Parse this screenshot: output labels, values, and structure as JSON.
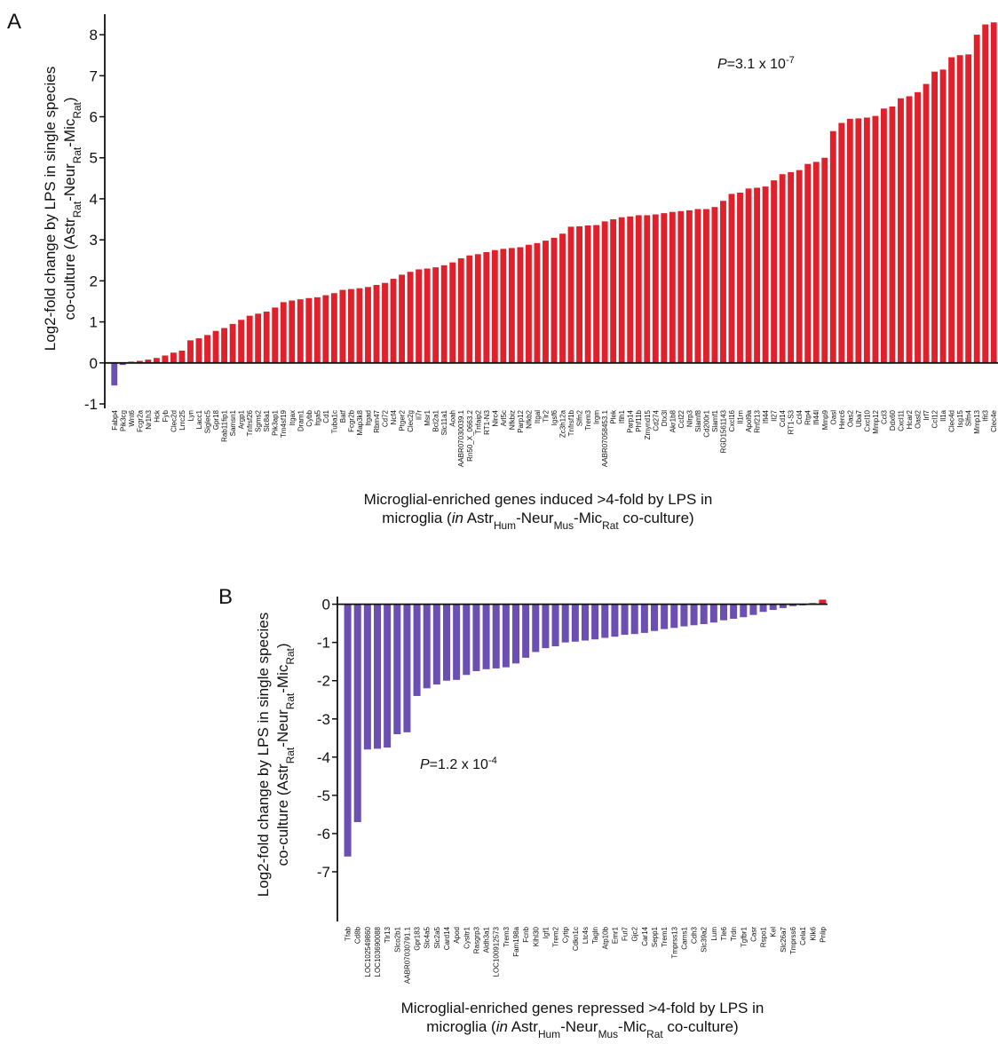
{
  "chart_data": [
    {
      "type": "bar",
      "panel": "A",
      "color": "#e0202a",
      "negative_color": "#6b4fb3",
      "ylabel": [
        [
          {
            "text": "Log2-fold change by LPS in single species",
            "style": "normal"
          }
        ],
        [
          {
            "text": "co-culture (Astr",
            "style": "normal"
          },
          {
            "text": "Rat",
            "style": "sub"
          },
          {
            "text": "-Neur",
            "style": "normal"
          },
          {
            "text": "Rat",
            "style": "sub"
          },
          {
            "text": "-Mic",
            "style": "normal"
          },
          {
            "text": "Rat",
            "style": "sub"
          },
          {
            "text": ")",
            "style": "normal"
          }
        ]
      ],
      "xlabel": [
        [
          {
            "text": "Microglial-enriched genes induced >4-fold by LPS in",
            "style": "normal"
          }
        ],
        [
          {
            "text": "microglia (",
            "style": "normal"
          },
          {
            "text": "in",
            "style": "italic"
          },
          {
            "text": " Astr",
            "style": "normal"
          },
          {
            "text": "Hum",
            "style": "sub"
          },
          {
            "text": "-Neur",
            "style": "normal"
          },
          {
            "text": "Mus",
            "style": "sub"
          },
          {
            "text": "-Mic",
            "style": "normal"
          },
          {
            "text": "Rat",
            "style": "sub"
          },
          {
            "text": " co-culture)",
            "style": "normal"
          }
        ]
      ],
      "annotation": [
        {
          "text": "P",
          "style": "italic"
        },
        {
          "text": "=3.1 x 10",
          "style": "normal"
        },
        {
          "text": "-7",
          "style": "sup"
        }
      ],
      "categories": [
        "Fabp4",
        "Pik3cg",
        "Wnt6",
        "Fcgr2a",
        "Nr1h3",
        "Hck",
        "Fyb",
        "Clec2d",
        "Lrrc25",
        "Lyn",
        "Lacc1",
        "Siglec5",
        "Gpr18",
        "Rab11fip1",
        "Samsn1",
        "Argp1",
        "Tnfrsf26",
        "Sgms2",
        "Slc8a1",
        "Pik3ap1",
        "Tm4sf19",
        "Itgax",
        "Dram1",
        "Cybb",
        "Itga5",
        "Cd1",
        "Tuba1c",
        "Batf",
        "Fcgr2b",
        "Map3k8",
        "Itgad",
        "Rbm47",
        "Cd72",
        "Ncf4",
        "Ptger2",
        "Clec2g",
        "Il7r",
        "Msr1",
        "Bcl2a1",
        "Slc11a1",
        "Aoah",
        "AABR07030039.1",
        "Rn50_X_0663.2",
        "Tnfaip2",
        "RT1-N3",
        "Nlrc4",
        "Arl5c",
        "Nfkbiz",
        "Parp12",
        "Nfkb2",
        "Itgal",
        "Tlr2",
        "Igsf6",
        "Zc3h12a",
        "Tnfrsf1b",
        "Slfn2",
        "Trem3",
        "Irgm",
        "AABR07058453.1",
        "Plek",
        "Ifih1",
        "Parp14",
        "Phf11b",
        "Zmynd15",
        "Cd274",
        "Dtx3l",
        "Akr1b8",
        "Ccl22",
        "Nlrp3",
        "Slamf8",
        "Cd200r1",
        "Slamf1",
        "RGD1561143",
        "Cxcl16",
        "Il1rn",
        "Apol9a",
        "Rnf213",
        "Ifi44",
        "Il27",
        "Cd14",
        "RT1-S3",
        "Ccl4",
        "Rtp4",
        "Ifi44l",
        "Mmp9",
        "Oasl",
        "Herc6",
        "Oas2",
        "Uba7",
        "Cxcl10",
        "Mmp12",
        "Ccl3",
        "Ddx60",
        "Cxcl11",
        "Hcar2",
        "Oasl2",
        "Irf7",
        "Ccl12",
        "Il1a",
        "Clec4d",
        "Isg15",
        "Slfn4",
        "Mmp13",
        "Ifit3",
        "Clec4e"
      ],
      "values": [
        -0.55,
        -0.05,
        0.03,
        0.05,
        0.08,
        0.12,
        0.18,
        0.25,
        0.3,
        0.55,
        0.6,
        0.68,
        0.78,
        0.85,
        0.95,
        1.05,
        1.15,
        1.2,
        1.25,
        1.35,
        1.48,
        1.52,
        1.55,
        1.58,
        1.6,
        1.65,
        1.7,
        1.78,
        1.8,
        1.82,
        1.85,
        1.9,
        1.95,
        2.05,
        2.15,
        2.22,
        2.28,
        2.3,
        2.33,
        2.38,
        2.45,
        2.55,
        2.62,
        2.65,
        2.7,
        2.75,
        2.78,
        2.8,
        2.82,
        2.88,
        2.92,
        2.98,
        3.05,
        3.15,
        3.32,
        3.33,
        3.35,
        3.36,
        3.45,
        3.5,
        3.55,
        3.57,
        3.6,
        3.6,
        3.62,
        3.65,
        3.68,
        3.7,
        3.72,
        3.75,
        3.75,
        3.8,
        3.95,
        4.12,
        4.15,
        4.25,
        4.27,
        4.3,
        4.45,
        4.6,
        4.65,
        4.7,
        4.85,
        4.9,
        5.0,
        5.65,
        5.85,
        5.95,
        5.96,
        5.98,
        6.02,
        6.2,
        6.25,
        6.45,
        6.5,
        6.6,
        6.8,
        7.1,
        7.15,
        7.45,
        7.5,
        7.52,
        8.0,
        8.25,
        8.3
      ],
      "ylim": [
        -1,
        8.5
      ],
      "yticks": [
        -1,
        0,
        1,
        2,
        3,
        4,
        5,
        6,
        7,
        8
      ]
    },
    {
      "type": "bar",
      "panel": "B",
      "color": "#6b4fb3",
      "positive_color": "#e0202a",
      "ylabel": [
        [
          {
            "text": "Log2-fold change by LPS in single species",
            "style": "normal"
          }
        ],
        [
          {
            "text": "co-culture (Astr",
            "style": "normal"
          },
          {
            "text": "Rat",
            "style": "sub"
          },
          {
            "text": "-Neur",
            "style": "normal"
          },
          {
            "text": "Rat",
            "style": "sub"
          },
          {
            "text": "-Mic",
            "style": "normal"
          },
          {
            "text": "Rat",
            "style": "sub"
          },
          {
            "text": ")",
            "style": "normal"
          }
        ]
      ],
      "xlabel": [
        [
          {
            "text": "Microglial-enriched genes repressed >4-fold by LPS in",
            "style": "normal"
          }
        ],
        [
          {
            "text": "microglia (",
            "style": "normal"
          },
          {
            "text": "in",
            "style": "italic"
          },
          {
            "text": " Astr",
            "style": "normal"
          },
          {
            "text": "Hum",
            "style": "sub"
          },
          {
            "text": "-Neur",
            "style": "normal"
          },
          {
            "text": "Mus",
            "style": "sub"
          },
          {
            "text": "-Mic",
            "style": "normal"
          },
          {
            "text": "Rat",
            "style": "sub"
          },
          {
            "text": " co-culture)",
            "style": "normal"
          }
        ]
      ],
      "annotation": [
        {
          "text": "P",
          "style": "italic"
        },
        {
          "text": "=1.2 x 10",
          "style": "normal"
        },
        {
          "text": "-4",
          "style": "sup"
        }
      ],
      "categories": [
        "Tfab",
        "Cd8b",
        "LOC102549860",
        "LOC103690088",
        "Tlr13",
        "Slco2b1",
        "AABR07030791.1",
        "Gpr183",
        "Slc4a5",
        "Slc2a5",
        "Card14",
        "Apod",
        "Cysltr1",
        "Rasgrp3",
        "Aldh3a1",
        "LOC100912573",
        "Trem3",
        "Fam198a",
        "Fcnb",
        "Klhl30",
        "Igf1",
        "Trem2",
        "Cytip",
        "Cdkn1c",
        "Ltc4s",
        "Tagln",
        "Atp10b",
        "Emr1",
        "Fut7",
        "Gjc2",
        "Car14",
        "Sepp1",
        "Trem1",
        "Tmprss13",
        "Carns1",
        "Cdh3",
        "Slc39a2",
        "Lum",
        "Tle6",
        "Trdn",
        "Tgfbr1",
        "Casr",
        "Rspo1",
        "Kel",
        "Slc26a7",
        "Tmprss6",
        "Cela1",
        "Klk6",
        "Pnlip"
      ],
      "values": [
        -6.6,
        -5.7,
        -3.8,
        -3.78,
        -3.75,
        -3.4,
        -3.35,
        -2.4,
        -2.2,
        -2.1,
        -2.0,
        -1.98,
        -1.85,
        -1.75,
        -1.7,
        -1.68,
        -1.65,
        -1.55,
        -1.4,
        -1.25,
        -1.15,
        -1.1,
        -1.0,
        -0.98,
        -0.95,
        -0.92,
        -0.88,
        -0.85,
        -0.8,
        -0.78,
        -0.75,
        -0.7,
        -0.65,
        -0.62,
        -0.58,
        -0.55,
        -0.52,
        -0.48,
        -0.42,
        -0.38,
        -0.34,
        -0.28,
        -0.2,
        -0.15,
        -0.1,
        -0.05,
        -0.03,
        0.03,
        0.12
      ],
      "ylim": [
        -8.3,
        0.2
      ],
      "yticks": [
        -7,
        -6,
        -5,
        -4,
        -3,
        -2,
        -1,
        0
      ]
    }
  ]
}
